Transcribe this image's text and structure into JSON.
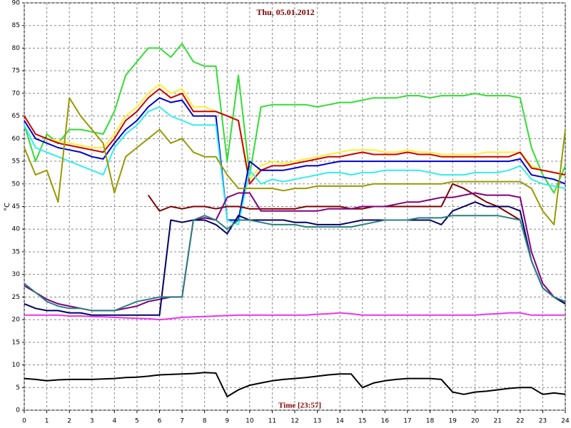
{
  "chart_data": {
    "type": "line",
    "title": "Thu, 05.01.2012",
    "x_label": "Time [23:57]",
    "y_label": "°C",
    "x": [
      0,
      0.5,
      1,
      1.5,
      2,
      2.5,
      3,
      3.5,
      4,
      4.5,
      5,
      5.5,
      6,
      6.5,
      7,
      7.5,
      8,
      8.5,
      9,
      9.5,
      10,
      10.5,
      11,
      11.5,
      12,
      12.5,
      13,
      13.5,
      14,
      14.5,
      15,
      15.5,
      16,
      16.5,
      17,
      17.5,
      18,
      18.5,
      19,
      19.5,
      20,
      20.5,
      21,
      21.5,
      22,
      22.5,
      23,
      23.5,
      24
    ],
    "xlim": [
      0,
      24
    ],
    "ylim": [
      0,
      90
    ],
    "xticks": [
      0,
      1,
      2,
      3,
      4,
      5,
      6,
      7,
      8,
      9,
      10,
      11,
      12,
      13,
      14,
      15,
      16,
      17,
      18,
      19,
      20,
      21,
      22,
      23,
      24
    ],
    "yticks": [
      0,
      5,
      10,
      15,
      20,
      25,
      30,
      35,
      40,
      45,
      50,
      55,
      60,
      65,
      70,
      75,
      80,
      85,
      90
    ],
    "grid": true,
    "series": [
      {
        "color": "#33dd33",
        "values": [
          63,
          55,
          61,
          59,
          62,
          62,
          61.5,
          61,
          66,
          74,
          77,
          80,
          80,
          78,
          81,
          77,
          76,
          76,
          55,
          74,
          52,
          67,
          67.5,
          67.5,
          67.5,
          67.5,
          67,
          67.5,
          68,
          68,
          68.5,
          69,
          69,
          69,
          69.5,
          69.5,
          69,
          69.5,
          69.5,
          69.5,
          70,
          69.5,
          69.5,
          69.5,
          69,
          58,
          52,
          48,
          54
        ]
      },
      {
        "color": "#ffee33",
        "values": [
          65,
          61,
          60,
          59.5,
          59,
          58.5,
          58,
          58,
          61,
          65,
          67,
          70,
          72,
          70,
          71,
          67,
          67,
          66,
          65,
          64,
          51,
          54,
          55,
          54.5,
          55,
          55.5,
          56,
          56.5,
          57,
          57.5,
          57.5,
          57.5,
          57,
          57,
          57.5,
          57,
          57,
          56.5,
          56.5,
          56.5,
          56.5,
          57,
          57,
          57,
          57,
          54,
          53,
          52.5,
          52
        ]
      },
      {
        "color": "#cc0000",
        "values": [
          65,
          61,
          60,
          59,
          58.5,
          58,
          57.5,
          57,
          60,
          64,
          66,
          69,
          71,
          69,
          70,
          66,
          66,
          66,
          65,
          64,
          50,
          53,
          54,
          54,
          54.5,
          55,
          55.5,
          56,
          56,
          56.5,
          57,
          56.5,
          56.5,
          56.5,
          57,
          56.5,
          56.5,
          56,
          56,
          56,
          56,
          56,
          56,
          56,
          57,
          53.5,
          53,
          52.5,
          52
        ]
      },
      {
        "color": "#0000cc",
        "values": [
          64,
          60,
          59,
          58,
          57.5,
          57,
          56,
          55.5,
          59,
          62,
          64,
          67,
          69,
          68,
          68.5,
          65,
          65,
          65,
          42,
          42,
          55,
          53,
          53,
          53,
          53.5,
          54,
          54,
          54.5,
          55,
          55,
          55,
          55,
          55,
          55,
          55,
          55,
          55,
          55,
          55,
          55,
          55,
          55,
          55,
          55,
          55.5,
          52,
          51.5,
          51,
          50
        ]
      },
      {
        "color": "#33eeee",
        "values": [
          63,
          58,
          57,
          56,
          55,
          54,
          53,
          52,
          58,
          61,
          63,
          66,
          67,
          65,
          64,
          63,
          63,
          63,
          42,
          41,
          53,
          50,
          51,
          50.5,
          51,
          51.5,
          52,
          52.5,
          52.5,
          52,
          52.5,
          52.5,
          53,
          53,
          53,
          53,
          52.5,
          52,
          52,
          52,
          52.5,
          52.5,
          52.5,
          53,
          54,
          51,
          50,
          49.5,
          49
        ]
      },
      {
        "color": "#999900",
        "values": [
          58,
          52,
          53,
          46,
          69,
          65,
          62,
          59,
          48,
          56,
          58,
          60,
          62,
          59,
          60,
          57,
          56,
          56,
          52,
          49,
          49,
          49,
          49,
          48.5,
          49,
          49,
          49.5,
          49.5,
          49.5,
          49.5,
          49.5,
          50,
          50,
          50,
          50,
          50,
          50,
          50,
          50.5,
          50.5,
          50.5,
          50.5,
          50.5,
          50.5,
          50.5,
          49,
          44,
          41,
          62
        ]
      },
      {
        "color": "#800000",
        "values": [
          null,
          null,
          null,
          null,
          null,
          null,
          null,
          null,
          null,
          null,
          null,
          47.5,
          44,
          45,
          44.5,
          45,
          45,
          44.5,
          45,
          45,
          44.5,
          44.5,
          44.5,
          44.5,
          44.5,
          45,
          45,
          45,
          45,
          44.5,
          44.5,
          45,
          45,
          45,
          45,
          45,
          45,
          45,
          50,
          49,
          47.5,
          46,
          45,
          43.5,
          42,
          null,
          null,
          null,
          null
        ]
      },
      {
        "color": "#800080",
        "values": [
          27.5,
          26,
          24.5,
          23.5,
          23,
          22.5,
          22,
          22,
          22,
          22.5,
          23,
          24,
          24.5,
          25,
          25,
          42,
          42.5,
          42,
          47,
          48,
          48,
          44,
          44,
          44,
          44,
          44,
          44,
          44.5,
          44.5,
          44.5,
          45,
          45,
          45,
          45.5,
          46,
          46,
          46.5,
          47,
          47,
          47.5,
          48,
          47.5,
          47.5,
          47.5,
          47,
          35,
          28,
          25,
          23.5
        ]
      },
      {
        "color": "#000066",
        "values": [
          23.5,
          22.5,
          22,
          22,
          21.5,
          21.5,
          21,
          21,
          21,
          21,
          21,
          21,
          21,
          42,
          41.5,
          42,
          42,
          41,
          39,
          43,
          42,
          42,
          42,
          42,
          41.5,
          41.5,
          41,
          41,
          41,
          41.5,
          42,
          42,
          42,
          42,
          42,
          42,
          42,
          41,
          44,
          45,
          46,
          45,
          45,
          45,
          44,
          33,
          27,
          25,
          23.5
        ]
      },
      {
        "color": "#2a8080",
        "values": [
          28,
          26,
          24,
          23,
          22.5,
          22.5,
          22,
          22,
          22,
          23,
          24,
          24.5,
          25,
          25,
          25,
          42,
          43,
          42,
          40,
          42,
          42,
          41.5,
          41,
          41,
          41,
          40.5,
          40.5,
          40.5,
          40.5,
          40.5,
          41,
          41.5,
          42,
          42,
          42,
          42.5,
          42.5,
          42.5,
          43,
          43,
          43,
          43,
          43,
          42.5,
          42,
          33,
          27,
          25,
          24
        ]
      },
      {
        "color": "#ee33ee",
        "values": [
          21,
          21,
          21,
          21,
          20.8,
          20.8,
          20.7,
          20.6,
          20.5,
          20.4,
          20.3,
          20.2,
          20,
          20.2,
          20.5,
          20.6,
          20.7,
          20.8,
          20.9,
          21,
          21,
          21,
          21,
          21,
          21,
          21,
          21.2,
          21.3,
          21.5,
          21.3,
          21,
          21,
          21,
          21,
          21,
          21,
          21,
          21,
          21,
          21,
          21,
          21.2,
          21.3,
          21.5,
          21.5,
          21,
          21,
          21,
          21
        ]
      },
      {
        "color": "#000000",
        "values": [
          7,
          6.8,
          6.5,
          6.7,
          6.8,
          6.8,
          6.8,
          6.9,
          7,
          7.2,
          7.3,
          7.5,
          7.8,
          7.9,
          8,
          8.1,
          8.3,
          8.2,
          3,
          4.5,
          5.5,
          6,
          6.5,
          6.8,
          7,
          7.2,
          7.5,
          7.8,
          8,
          8,
          5,
          6,
          6.5,
          6.8,
          7,
          7,
          7,
          6.8,
          4,
          3.5,
          4,
          4.2,
          4.5,
          4.8,
          5,
          5,
          3.5,
          3.8,
          3.5
        ]
      }
    ]
  }
}
